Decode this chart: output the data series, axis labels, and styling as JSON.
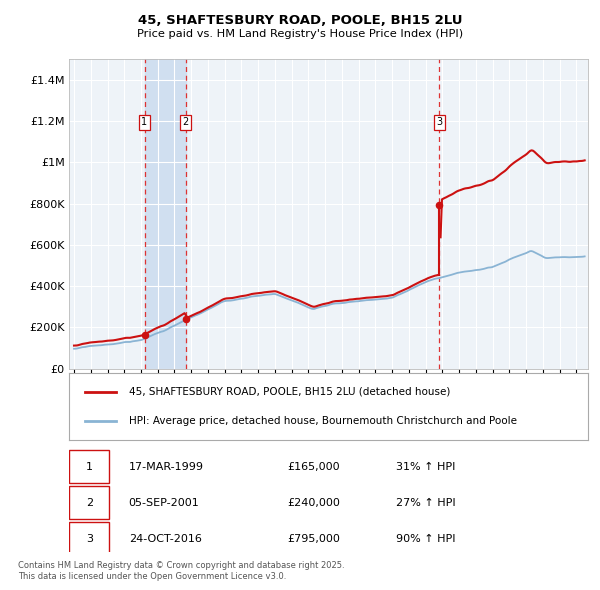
{
  "title1": "45, SHAFTESBURY ROAD, POOLE, BH15 2LU",
  "title2": "Price paid vs. HM Land Registry's House Price Index (HPI)",
  "plot_bg_color": "#eef3f8",
  "grid_color": "#ffffff",
  "hpi_color": "#8ab4d4",
  "property_color": "#cc1111",
  "span_color": "#d0dff0",
  "transactions": [
    {
      "label": "1",
      "date": "17-MAR-1999",
      "date_num": 1999.21,
      "price": 165000,
      "pct": "31% ↑ HPI"
    },
    {
      "label": "2",
      "date": "05-SEP-2001",
      "date_num": 2001.68,
      "price": 240000,
      "pct": "27% ↑ HPI"
    },
    {
      "label": "3",
      "date": "24-OCT-2016",
      "date_num": 2016.81,
      "price": 795000,
      "pct": "90% ↑ HPI"
    }
  ],
  "legend_property": "45, SHAFTESBURY ROAD, POOLE, BH15 2LU (detached house)",
  "legend_hpi": "HPI: Average price, detached house, Bournemouth Christchurch and Poole",
  "footer": "Contains HM Land Registry data © Crown copyright and database right 2025.\nThis data is licensed under the Open Government Licence v3.0.",
  "ylim": [
    0,
    1500000
  ],
  "yticks": [
    0,
    200000,
    400000,
    600000,
    800000,
    1000000,
    1200000,
    1400000
  ],
  "ytick_labels": [
    "£0",
    "£200K",
    "£400K",
    "£600K",
    "£800K",
    "£1M",
    "£1.2M",
    "£1.4M"
  ],
  "xstart": 1994.7,
  "xend": 2025.7
}
